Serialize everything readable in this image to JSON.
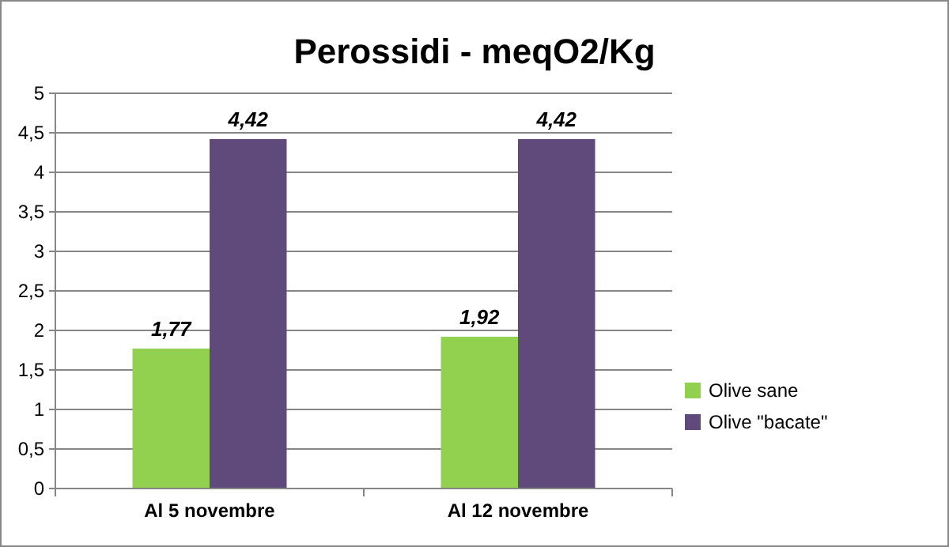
{
  "chart_data": {
    "type": "bar",
    "title": "Perossidi - meqO2/Kg",
    "categories": [
      "Al 5 novembre",
      "Al 12 novembre"
    ],
    "series": [
      {
        "name": "Olive sane",
        "color": "#92d050",
        "values": [
          1.77,
          1.92
        ],
        "value_labels": [
          "1,77",
          "1,92"
        ]
      },
      {
        "name": "Olive \"bacate\"",
        "color": "#604a7b",
        "values": [
          4.42,
          4.42
        ],
        "value_labels": [
          "4,42",
          "4,42"
        ]
      }
    ],
    "ylim": [
      0,
      5
    ],
    "yticks": [
      0,
      {
        "value": 0.5,
        "label": "0,5"
      },
      1,
      {
        "value": 1.5,
        "label": "1,5"
      },
      2,
      {
        "value": 2.5,
        "label": "2,5"
      },
      3,
      {
        "value": 3.5,
        "label": "3,5"
      },
      4,
      {
        "value": 4.5,
        "label": "4,5"
      },
      5
    ],
    "grid": "y",
    "legend": "right"
  }
}
